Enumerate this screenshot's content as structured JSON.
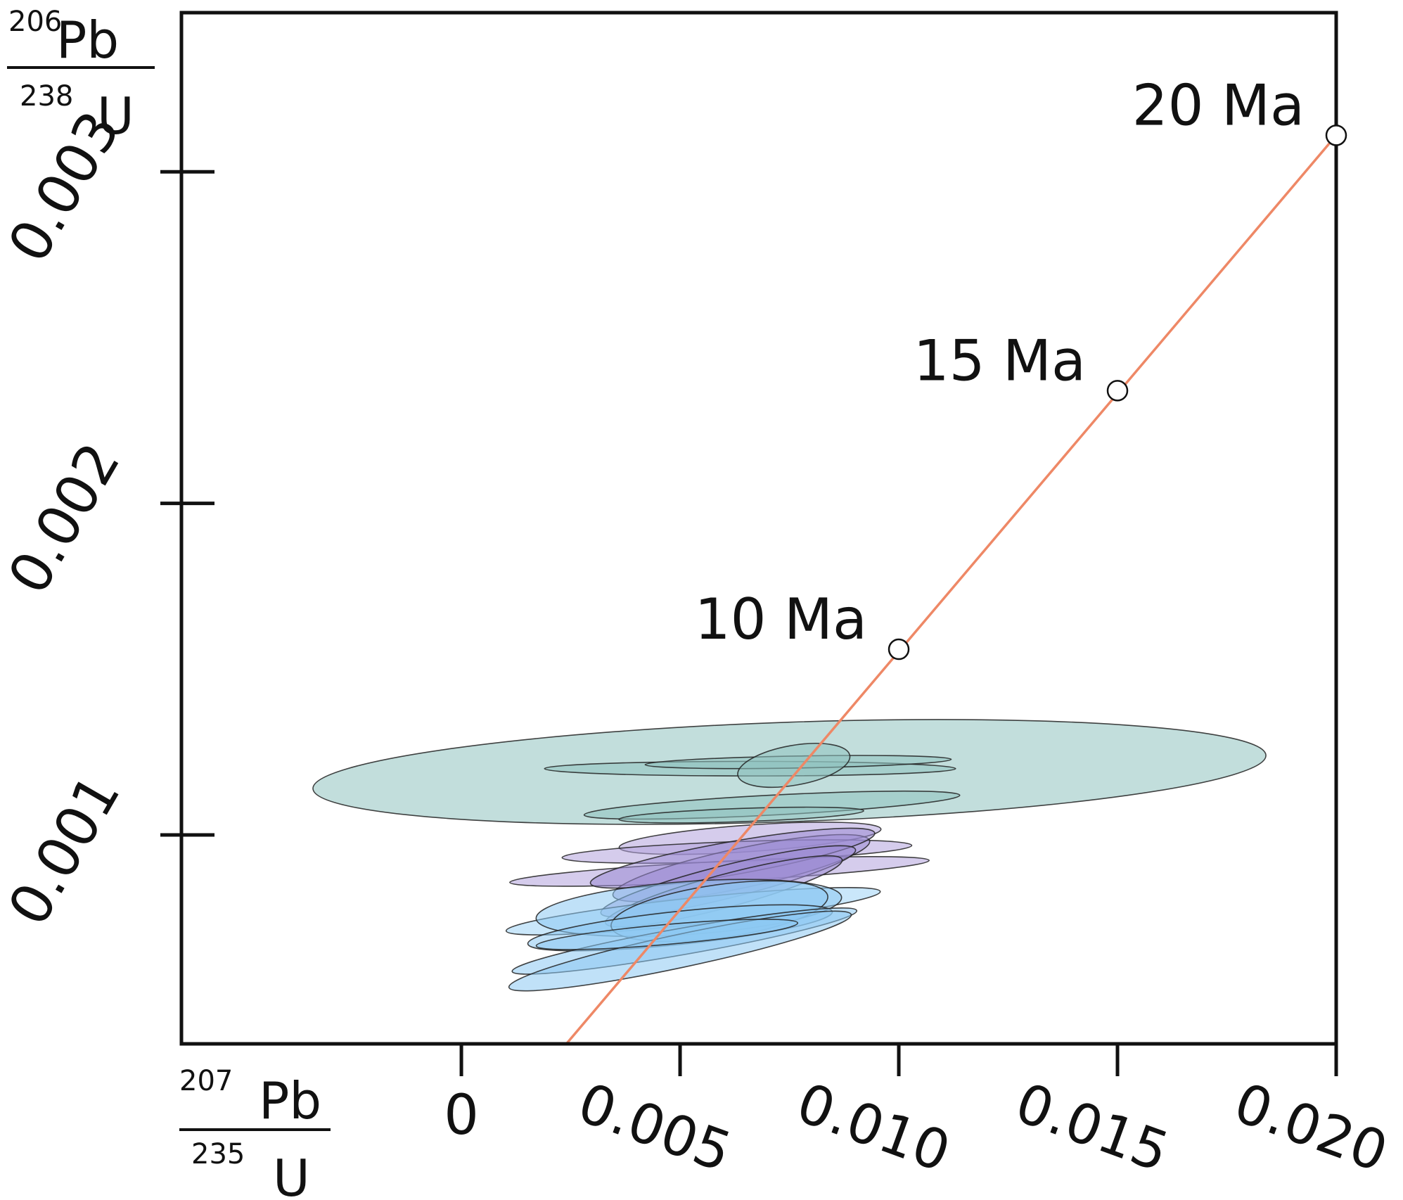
{
  "chart_data": {
    "type": "scatter",
    "subtype": "concordia",
    "title": "",
    "x_axis": {
      "label": {
        "sup": "207",
        "element": "Pb",
        "denominator_sup": "235",
        "denominator_element": "U"
      },
      "lim": [
        -0.0064,
        0.02
      ],
      "ticks": [
        0,
        0.005,
        0.01,
        0.015,
        0.02
      ],
      "tick_labels": [
        "0",
        "0.005",
        "0.010",
        "0.015",
        "0.020"
      ]
    },
    "y_axis": {
      "label": {
        "sup": "206",
        "element": "Pb",
        "denominator_sup": "238",
        "denominator_element": "U"
      },
      "lim": [
        0.00037,
        0.00348
      ],
      "ticks": [
        0.001,
        0.002,
        0.003
      ],
      "tick_labels": [
        "0.001",
        "0.002",
        "0.003"
      ]
    },
    "concordia": {
      "color": "#ee8866",
      "points": [
        [
          0.0024,
          0.00037
        ],
        [
          0.02,
          0.00311
        ]
      ],
      "age_markers": [
        {
          "x": 0.01,
          "y": 0.00156,
          "label": "10 Ma"
        },
        {
          "x": 0.015,
          "y": 0.00234,
          "label": "15 Ma"
        },
        {
          "x": 0.02,
          "y": 0.00311,
          "label": "20 Ma"
        }
      ]
    },
    "ellipses": [
      {
        "cx": 0.0075,
        "cy": 0.00119,
        "rx": 0.0109,
        "ry": 0.00015,
        "angle": -2,
        "fill": "#8fc2bf"
      },
      {
        "cx": 0.0066,
        "cy": 0.0012,
        "rx": 0.0047,
        "ry": 2.2e-05,
        "angle": 0,
        "fill": "#8fc2bf"
      },
      {
        "cx": 0.0077,
        "cy": 0.00122,
        "rx": 0.0035,
        "ry": 1.8e-05,
        "angle": -1,
        "fill": "#8fc2bf"
      },
      {
        "cx": 0.0076,
        "cy": 0.00121,
        "rx": 0.0013,
        "ry": 6e-05,
        "angle": -10,
        "fill": "#8fc2bf"
      },
      {
        "cx": 0.0071,
        "cy": 0.00109,
        "rx": 0.0043,
        "ry": 3e-05,
        "angle": -3,
        "fill": "#8fc2bf"
      },
      {
        "cx": 0.0064,
        "cy": 0.00106,
        "rx": 0.0028,
        "ry": 2e-05,
        "angle": -2,
        "fill": "#8fc2bf"
      },
      {
        "cx": 0.0066,
        "cy": 0.00099,
        "rx": 0.003,
        "ry": 4e-05,
        "angle": -4,
        "fill": "#b2a3dc"
      },
      {
        "cx": 0.0063,
        "cy": 0.00095,
        "rx": 0.004,
        "ry": 3e-05,
        "angle": -2,
        "fill": "#b2a3dc"
      },
      {
        "cx": 0.0059,
        "cy": 0.00089,
        "rx": 0.0048,
        "ry": 3e-05,
        "angle": -3,
        "fill": "#b2a3dc"
      },
      {
        "cx": 0.0064,
        "cy": 0.0009,
        "rx": 0.003,
        "ry": 6e-05,
        "angle": -12,
        "fill": "#9a8bd4"
      },
      {
        "cx": 0.0062,
        "cy": 0.00093,
        "rx": 0.0033,
        "ry": 5e-05,
        "angle": -10,
        "fill": "#9a8bd4"
      },
      {
        "cx": 0.0061,
        "cy": 0.00086,
        "rx": 0.003,
        "ry": 5e-05,
        "angle": -14,
        "fill": "#9a8bd4"
      },
      {
        "cx": 0.006,
        "cy": 0.00083,
        "rx": 0.0028,
        "ry": 5e-05,
        "angle": -15,
        "fill": "#9a8bd4"
      },
      {
        "cx": 0.0053,
        "cy": 0.00077,
        "rx": 0.0043,
        "ry": 4e-05,
        "angle": -6,
        "fill": "#9fd4f6"
      },
      {
        "cx": 0.0052,
        "cy": 0.00078,
        "rx": 0.0035,
        "ry": 8e-05,
        "angle": -4,
        "fill": "#8cc9f2"
      },
      {
        "cx": 0.0059,
        "cy": 0.00077,
        "rx": 0.0025,
        "ry": 8e-05,
        "angle": -8,
        "fill": "#8cc9f2"
      },
      {
        "cx": 0.005,
        "cy": 0.00072,
        "rx": 0.0035,
        "ry": 5e-05,
        "angle": -6,
        "fill": "#8cc9f2"
      },
      {
        "cx": 0.0051,
        "cy": 0.00068,
        "rx": 0.004,
        "ry": 4e-05,
        "angle": -10,
        "fill": "#8cc9f2"
      },
      {
        "cx": 0.005,
        "cy": 0.00065,
        "rx": 0.004,
        "ry": 5e-05,
        "angle": -12,
        "fill": "#8cc9f2"
      },
      {
        "cx": 0.0047,
        "cy": 0.0007,
        "rx": 0.003,
        "ry": 3e-05,
        "angle": -5,
        "fill": "#8cc9f2"
      }
    ],
    "grid": false,
    "legend": "none"
  }
}
